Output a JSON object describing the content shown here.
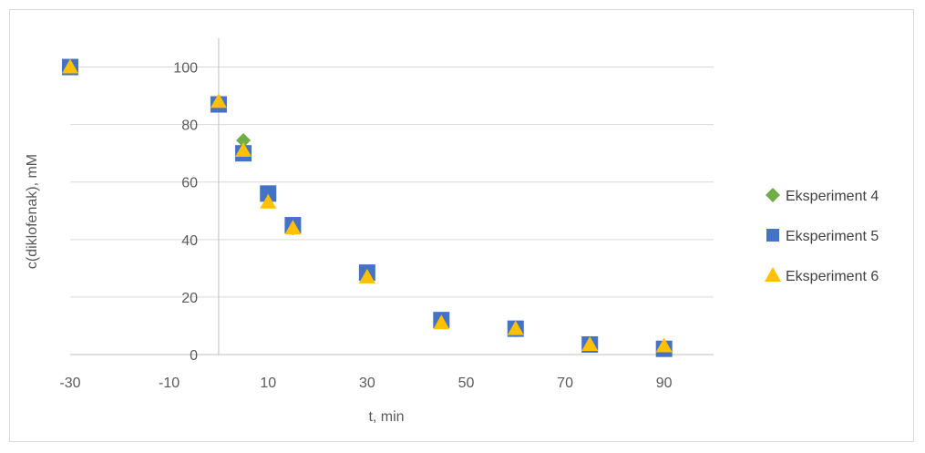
{
  "chart_data": {
    "type": "scatter",
    "title": "",
    "xlabel": "t, min",
    "ylabel": "c(diklofenak), mM",
    "xlim": [
      -30,
      100
    ],
    "ylim": [
      0,
      110
    ],
    "x_ticks": [
      -30,
      -10,
      10,
      30,
      50,
      70,
      90
    ],
    "y_ticks": [
      0,
      20,
      40,
      60,
      80,
      100
    ],
    "y_grid": true,
    "x_grid": false,
    "legend_position": "right",
    "series": [
      {
        "name": "Eksperiment 4",
        "marker": "diamond",
        "color": "#70ad47",
        "points": [
          [
            -30,
            100
          ],
          [
            0,
            88
          ],
          [
            5,
            74.5
          ],
          [
            10,
            55
          ],
          [
            15,
            44
          ],
          [
            30,
            27.5
          ],
          [
            45,
            11.5
          ],
          [
            60,
            8.5
          ],
          [
            75,
            3.5
          ],
          [
            90,
            2.5
          ]
        ]
      },
      {
        "name": "Eksperiment 5",
        "marker": "square",
        "color": "#4472c4",
        "points": [
          [
            -30,
            100
          ],
          [
            0,
            87
          ],
          [
            5,
            70
          ],
          [
            10,
            56
          ],
          [
            15,
            45
          ],
          [
            30,
            28.5
          ],
          [
            45,
            12
          ],
          [
            60,
            9
          ],
          [
            75,
            3.5
          ],
          [
            90,
            2
          ]
        ]
      },
      {
        "name": "Eksperiment 6",
        "marker": "triangle",
        "color": "#ffc000",
        "points": [
          [
            -30,
            100
          ],
          [
            0,
            88
          ],
          [
            5,
            71
          ],
          [
            10,
            53
          ],
          [
            15,
            44
          ],
          [
            30,
            27
          ],
          [
            45,
            11
          ],
          [
            60,
            9
          ],
          [
            75,
            3.5
          ],
          [
            90,
            3
          ]
        ]
      }
    ]
  }
}
